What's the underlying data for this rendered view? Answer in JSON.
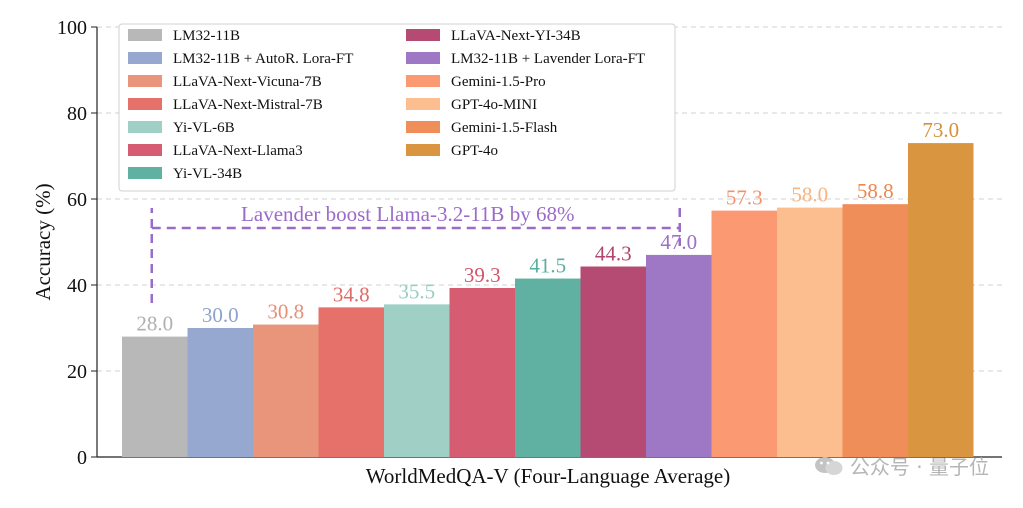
{
  "chart_data": {
    "type": "bar",
    "title": "",
    "xlabel": "WorldMedQA-V (Four-Language Average)",
    "ylabel": "Accuracy (%)",
    "ylim": [
      0,
      100
    ],
    "yticks": [
      0,
      20,
      40,
      60,
      80,
      100
    ],
    "grid": true,
    "legend_position": "top-left",
    "bars": [
      {
        "name": "LM32-11B",
        "value": 28.0,
        "label": "28.0",
        "color": "#b8b8b8",
        "label_color": "#b0b0b0"
      },
      {
        "name": "LM32-11B + AutoR. Lora-FT",
        "value": 30.0,
        "label": "30.0",
        "color": "#96a8d0",
        "label_color": "#8ea2cc"
      },
      {
        "name": "LLaVA-Next-Vicuna-7B",
        "value": 30.8,
        "label": "30.8",
        "color": "#e9957b",
        "label_color": "#e58f74"
      },
      {
        "name": "LLaVA-Next-Mistral-7B",
        "value": 34.8,
        "label": "34.8",
        "color": "#e5716a",
        "label_color": "#e06a64"
      },
      {
        "name": "Yi-VL-6B",
        "value": 35.5,
        "label": "35.5",
        "color": "#9fcfc5",
        "label_color": "#98ccc1"
      },
      {
        "name": "LLaVA-Next-Llama3",
        "value": 39.3,
        "label": "39.3",
        "color": "#d65c72",
        "label_color": "#d2566c"
      },
      {
        "name": "Yi-VL-34B",
        "value": 41.5,
        "label": "41.5",
        "color": "#60b1a2",
        "label_color": "#5aae9f"
      },
      {
        "name": "LLaVA-Next-YI-34B",
        "value": 44.3,
        "label": "44.3",
        "color": "#b54a73",
        "label_color": "#b0446e"
      },
      {
        "name": "LM32-11B + Lavender Lora-FT",
        "value": 47.0,
        "label": "47.0",
        "color": "#9f78c5",
        "label_color": "#9a72c2"
      },
      {
        "name": "Gemini-1.5-Pro",
        "value": 57.3,
        "label": "57.3",
        "color": "#fb9a72",
        "label_color": "#f3926b"
      },
      {
        "name": "GPT-4o-MINI",
        "value": 58.0,
        "label": "58.0",
        "color": "#fdbe8f",
        "label_color": "#f8b481"
      },
      {
        "name": "Gemini-1.5-Flash",
        "value": 58.8,
        "label": "58.8",
        "color": "#f08e5a",
        "label_color": "#eb8852"
      },
      {
        "name": "GPT-4o",
        "value": 73.0,
        "label": "73.0",
        "color": "#d9953f",
        "label_color": "#d69139"
      }
    ],
    "legend_columns": [
      [
        "LM32-11B",
        "LM32-11B + AutoR. Lora-FT",
        "LLaVA-Next-Vicuna-7B",
        "LLaVA-Next-Mistral-7B",
        "Yi-VL-6B",
        "LLaVA-Next-Llama3",
        "Yi-VL-34B"
      ],
      [
        "LLaVA-Next-YI-34B",
        "LM32-11B + Lavender Lora-FT",
        "Gemini-1.5-Pro",
        "GPT-4o-MINI",
        "Gemini-1.5-Flash",
        "GPT-4o"
      ]
    ],
    "annotation": {
      "text": "Lavender boost Llama-3.2-11B by 68%",
      "color": "#9b6bc8",
      "from_bar": "LM32-11B",
      "to_bar": "LM32-11B + Lavender Lora-FT"
    }
  },
  "watermark": {
    "text": "公众号 · 量子位"
  }
}
